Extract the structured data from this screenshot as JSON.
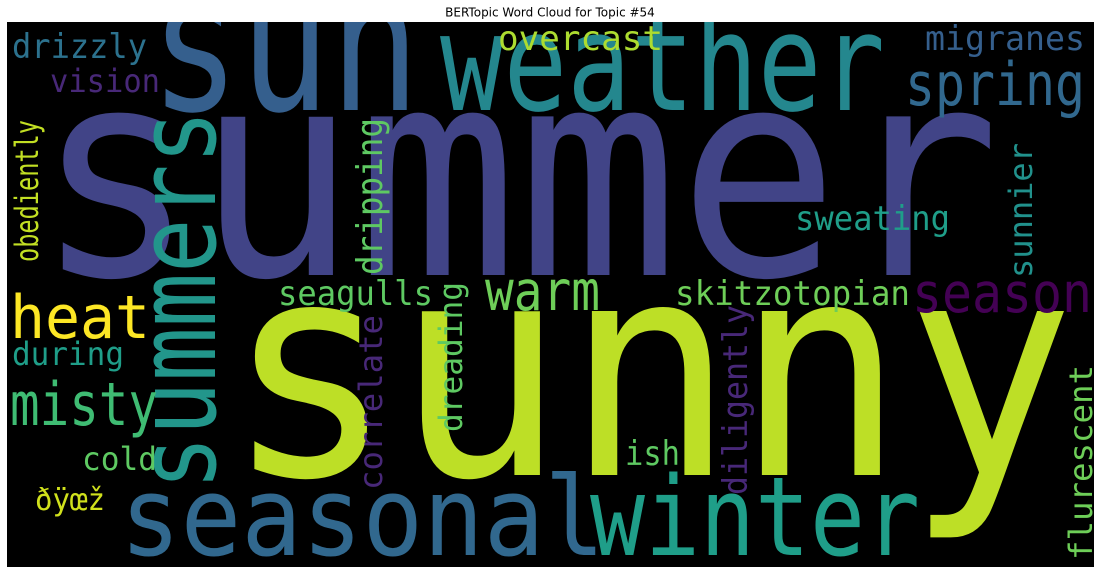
{
  "title": "BERTopic Word Cloud for Topic #54",
  "words": [
    {
      "text": "summer",
      "color": "#414487"
    },
    {
      "text": "sunny",
      "color": "#bddf26"
    },
    {
      "text": "sun",
      "color": "#355f8d"
    },
    {
      "text": "weather",
      "color": "#24878e"
    },
    {
      "text": "summers",
      "color": "#22968b"
    },
    {
      "text": "seasonal",
      "color": "#31688e"
    },
    {
      "text": "winter",
      "color": "#1f9e89"
    },
    {
      "text": "spring",
      "color": "#31688e"
    },
    {
      "text": "migranes",
      "color": "#355f8d"
    },
    {
      "text": "overcast",
      "color": "#addc30"
    },
    {
      "text": "drizzly",
      "color": "#2c728e"
    },
    {
      "text": "vision",
      "color": "#482878"
    },
    {
      "text": "obediently",
      "color": "#c2df23"
    },
    {
      "text": "heat",
      "color": "#fde725"
    },
    {
      "text": "during",
      "color": "#1f9e89"
    },
    {
      "text": "misty",
      "color": "#3fbc73"
    },
    {
      "text": "cold",
      "color": "#5ec962"
    },
    {
      "text": "ðÿœž",
      "color": "#d0e11c"
    },
    {
      "text": "dripping",
      "color": "#5ec962"
    },
    {
      "text": "seagulls",
      "color": "#5ec962"
    },
    {
      "text": "warm",
      "color": "#6ece58"
    },
    {
      "text": "correlate",
      "color": "#482878"
    },
    {
      "text": "dreading",
      "color": "#5ec962"
    },
    {
      "text": "sweating",
      "color": "#1f9e89"
    },
    {
      "text": "sunnier",
      "color": "#21918c"
    },
    {
      "text": "skitzotopian",
      "color": "#6ece58"
    },
    {
      "text": "season",
      "color": "#440154"
    },
    {
      "text": "diligently",
      "color": "#482878"
    },
    {
      "text": "ish",
      "color": "#5ec962"
    },
    {
      "text": "flurescent",
      "color": "#6ece58"
    }
  ]
}
